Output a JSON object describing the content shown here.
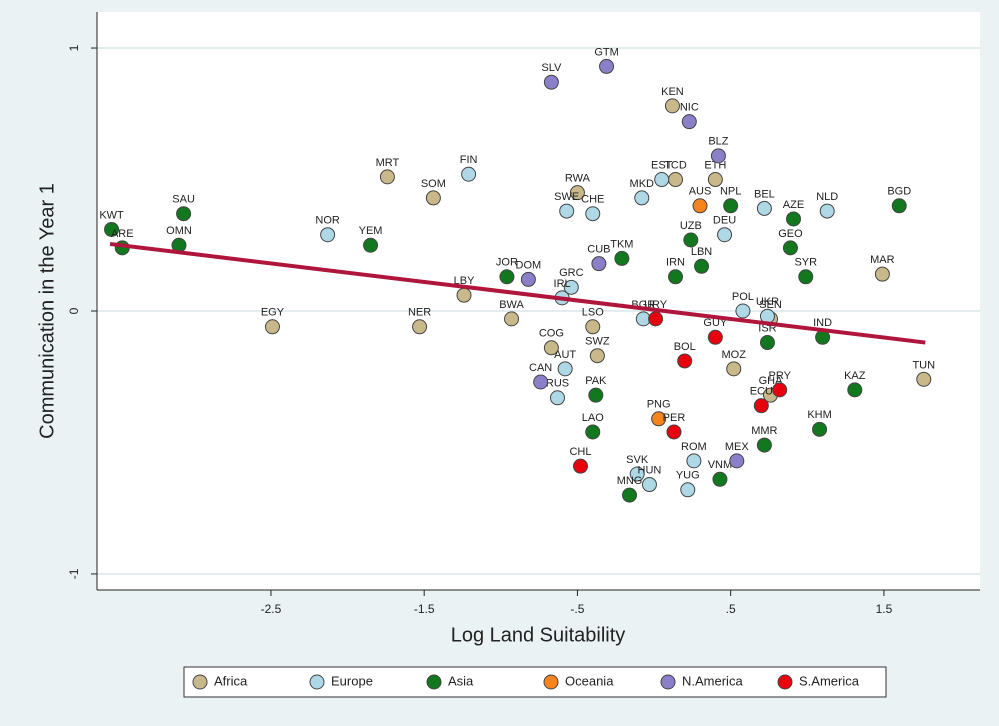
{
  "chart_data": {
    "type": "scatter",
    "x_label": "Log Land Suitability",
    "y_label": "Communication in the Year 1",
    "xlim": [
      -3.635,
      2.127
    ],
    "ylim": [
      -1.061,
      1.137
    ],
    "xticks": [
      -2.5,
      -1.5,
      {
        "value": -0.5,
        "label": "-.5"
      },
      {
        "value": 0.5,
        "label": ".5"
      },
      1.5
    ],
    "yticks": [
      -1,
      0,
      1
    ],
    "grid": true,
    "fit": {
      "color": "#b0153c",
      "x": [
        -3.55,
        1.77
      ],
      "values": [
        0.255,
        -0.12
      ]
    },
    "series": [
      {
        "name": "Africa",
        "color": "#c9b98a",
        "labels": [
          "MRT",
          "SOM",
          "EGY",
          "NER",
          "LBY",
          "BWA",
          "RWA",
          "TCD",
          "ETH",
          "KEN",
          "COG",
          "LSO",
          "SWZ",
          "MOZ",
          "MAR",
          "TUN",
          "SEN",
          "GHA"
        ],
        "x": [
          -1.74,
          -1.44,
          -2.49,
          -1.53,
          -1.24,
          -0.93,
          -0.5,
          0.14,
          0.4,
          0.12,
          -0.67,
          -0.4,
          -0.37,
          0.52,
          1.49,
          1.76,
          0.76,
          0.76
        ],
        "values": [
          0.51,
          0.43,
          -0.06,
          -0.06,
          0.06,
          -0.03,
          0.45,
          0.5,
          0.5,
          0.78,
          -0.14,
          -0.06,
          -0.17,
          -0.22,
          0.14,
          -0.26,
          -0.03,
          -0.32
        ]
      },
      {
        "name": "Europe",
        "color": "#aed8e6",
        "labels": [
          "FIN",
          "NOR",
          "SWE",
          "CHE",
          "EST",
          "MKD",
          "GRC",
          "IRL",
          "AUT",
          "RUS",
          "POL",
          "UKR",
          "NLD",
          "DEU",
          "SVK",
          "HUN",
          "YUG",
          "ROM",
          "BGR",
          "BEL"
        ],
        "x": [
          -1.21,
          -2.13,
          -0.57,
          -0.4,
          0.05,
          -0.08,
          -0.54,
          -0.6,
          -0.58,
          -0.63,
          0.58,
          0.74,
          1.13,
          0.46,
          -0.11,
          -0.03,
          0.22,
          0.26,
          -0.07,
          0.72
        ],
        "values": [
          0.52,
          0.29,
          0.38,
          0.37,
          0.5,
          0.43,
          0.09,
          0.05,
          -0.22,
          -0.33,
          0,
          -0.02,
          0.38,
          0.29,
          -0.62,
          -0.66,
          -0.68,
          -0.57,
          -0.03,
          0.39
        ]
      },
      {
        "name": "Asia",
        "color": "#11781e",
        "labels": [
          "KWT",
          "ARE",
          "SAU",
          "OMN",
          "YEM",
          "JOR",
          "TKM",
          "IRN",
          "LBN",
          "UZB",
          "NPL",
          "AZE",
          "SYR",
          "BGD",
          "IND",
          "KAZ",
          "ISR",
          "PAK",
          "LAO",
          "MNG",
          "VNM",
          "KHM",
          "MMR",
          "GEO"
        ],
        "x": [
          -3.54,
          -3.47,
          -3.07,
          -3.1,
          -1.85,
          -0.96,
          -0.21,
          0.14,
          0.31,
          0.24,
          0.5,
          0.91,
          0.99,
          1.6,
          1.1,
          1.31,
          0.74,
          -0.38,
          -0.4,
          -0.16,
          0.43,
          1.08,
          0.72,
          0.89
        ],
        "values": [
          0.31,
          0.24,
          0.37,
          0.25,
          0.25,
          0.13,
          0.2,
          0.13,
          0.17,
          0.27,
          0.4,
          0.35,
          0.13,
          0.4,
          -0.1,
          -0.3,
          -0.12,
          -0.32,
          -0.46,
          -0.7,
          -0.64,
          -0.45,
          -0.51,
          0.24
        ]
      },
      {
        "name": "Oceania",
        "color": "#f5841f",
        "labels": [
          "AUS",
          "PNG"
        ],
        "x": [
          0.3,
          0.03
        ],
        "values": [
          0.4,
          -0.41
        ]
      },
      {
        "name": "N.America",
        "color": "#8a80c9",
        "labels": [
          "GTM",
          "SLV",
          "NIC",
          "BLZ",
          "DOM",
          "CUB",
          "CAN",
          "MEX"
        ],
        "x": [
          -0.31,
          -0.67,
          0.23,
          0.42,
          -0.82,
          -0.36,
          -0.74,
          0.54
        ],
        "values": [
          0.93,
          0.87,
          0.72,
          0.59,
          0.12,
          0.18,
          -0.27,
          -0.57
        ]
      },
      {
        "name": "S.America",
        "color": "#e8000f",
        "labels": [
          "CHL",
          "PER",
          "PRY",
          "GUY",
          "URY",
          "BOL",
          "ECU"
        ],
        "x": [
          -0.48,
          0.13,
          0.82,
          0.4,
          0.01,
          0.2,
          0.7
        ],
        "values": [
          -0.59,
          -0.46,
          -0.3,
          -0.1,
          -0.03,
          -0.19,
          -0.36
        ]
      }
    ]
  }
}
